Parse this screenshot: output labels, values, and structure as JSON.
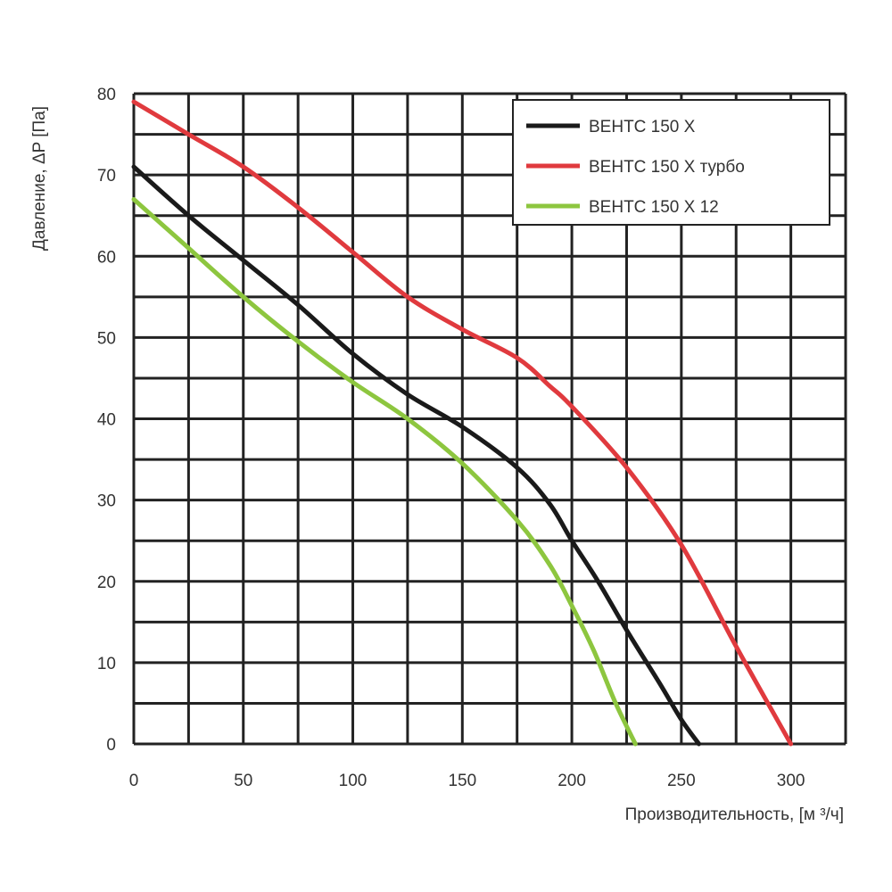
{
  "chart_data": {
    "type": "line",
    "title": "",
    "xlabel": "Производительность, [м ³/ч]",
    "ylabel": "Давление, ΔP [Па]",
    "xlim": [
      0,
      325
    ],
    "ylim": [
      0,
      80
    ],
    "x_ticks": [
      0,
      50,
      100,
      150,
      200,
      250,
      300
    ],
    "y_ticks": [
      0,
      10,
      20,
      30,
      40,
      50,
      60,
      70,
      80
    ],
    "grid": true,
    "legend_position": "top-right",
    "series": [
      {
        "name": "ВЕНТС 150 Х",
        "color": "#1a1a1a",
        "x": [
          0,
          25,
          50,
          75,
          100,
          125,
          150,
          175,
          190,
          200,
          212,
          225,
          240,
          250,
          258
        ],
        "y": [
          71,
          65,
          59.5,
          54,
          48,
          43,
          39,
          34,
          29.5,
          25,
          20,
          14,
          7.5,
          3,
          0
        ]
      },
      {
        "name": "ВЕНТС 150 Х турбо",
        "color": "#e03a3e",
        "x": [
          0,
          25,
          50,
          75,
          100,
          125,
          150,
          175,
          190,
          200,
          225,
          250,
          275,
          300
        ],
        "y": [
          79,
          75,
          71,
          66,
          60.5,
          55,
          51,
          47.5,
          44,
          41.5,
          34,
          24.5,
          12,
          0
        ]
      },
      {
        "name": "ВЕНТС 150 Х 12",
        "color": "#8dc63f",
        "x": [
          0,
          25,
          50,
          75,
          100,
          125,
          150,
          175,
          190,
          200,
          210,
          220,
          229
        ],
        "y": [
          67,
          61,
          55,
          49.5,
          44.5,
          40,
          34.5,
          27.5,
          22,
          17,
          11.5,
          5,
          0
        ]
      }
    ]
  }
}
